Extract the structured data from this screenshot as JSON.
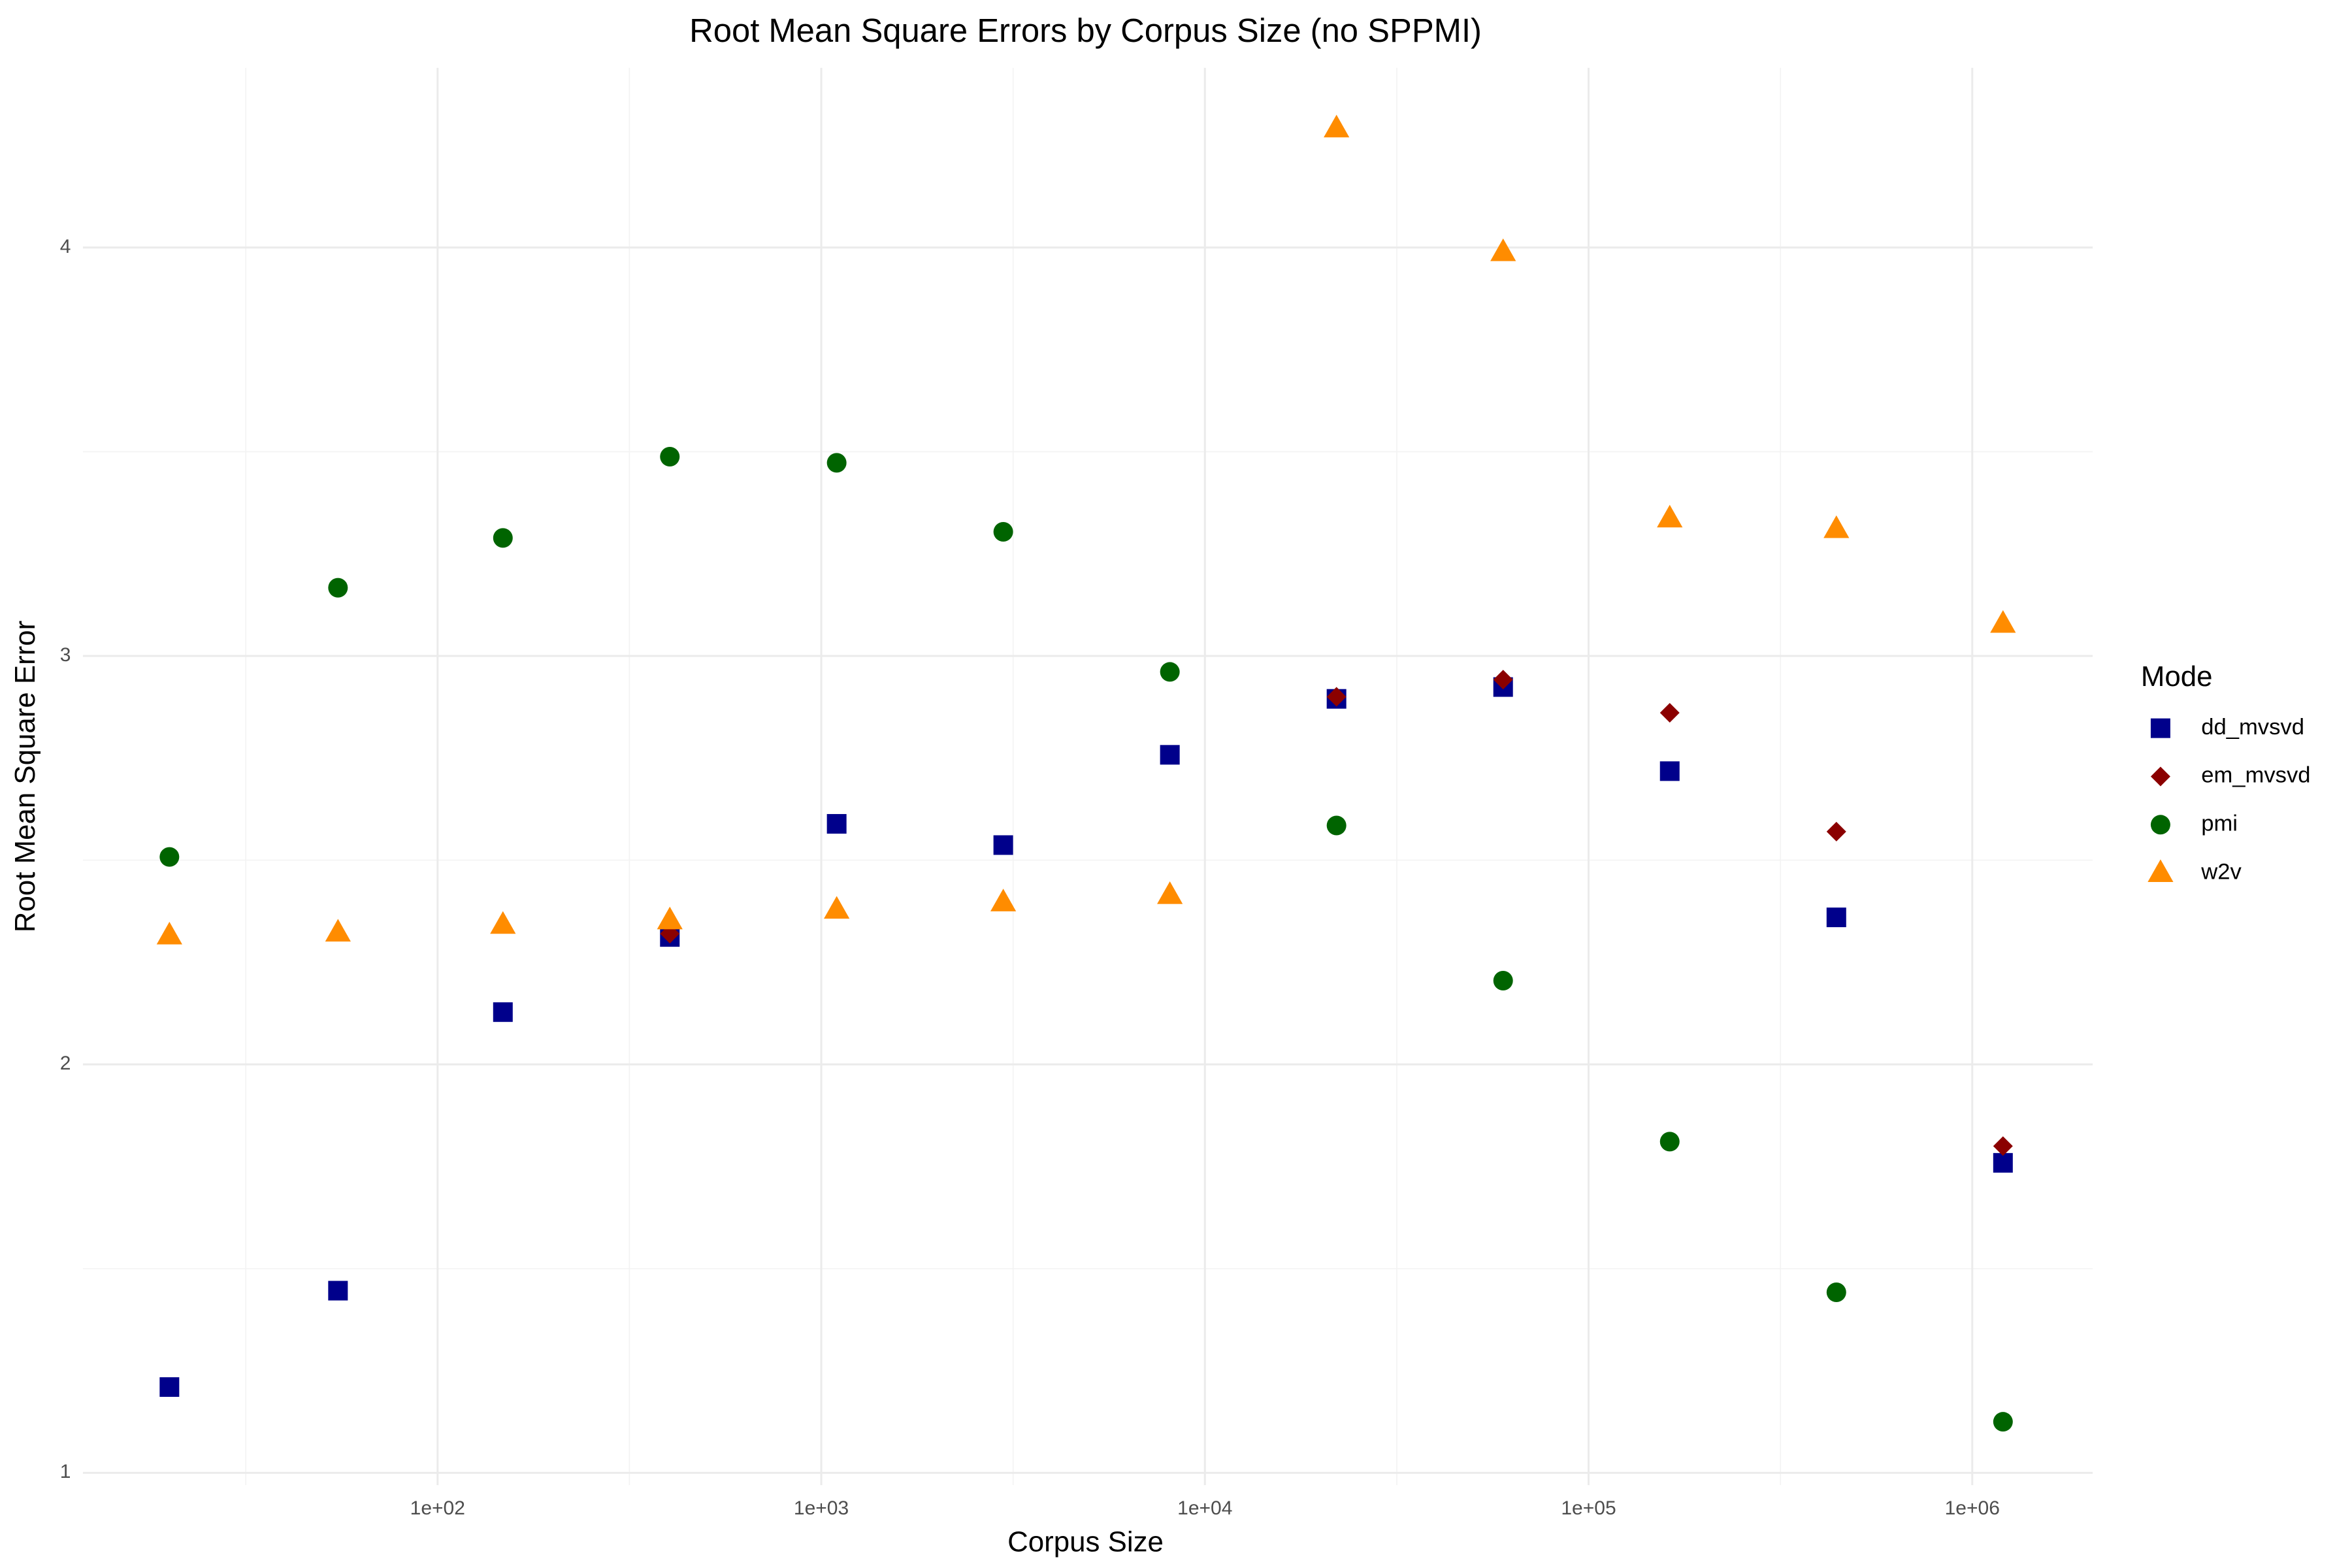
{
  "chart_data": {
    "type": "scatter",
    "title": "Root Mean Square Errors by Corpus Size (no SPPMI)",
    "x_label": "Corpus Size",
    "y_label": "Root Mean Square Error",
    "legend_title": "Mode",
    "legend_position": "right",
    "x_scale": "log",
    "grid": true,
    "x": [
      20,
      55,
      148,
      403,
      1097,
      2981,
      8103,
      22026,
      59874,
      162755,
      442413,
      1202604
    ],
    "xlim": [
      11.9,
      2060000
    ],
    "xticks": [
      {
        "value": 100,
        "label": "1e+02"
      },
      {
        "value": 1000,
        "label": "1e+03"
      },
      {
        "value": 10000,
        "label": "1e+04"
      },
      {
        "value": 100000,
        "label": "1e+05"
      },
      {
        "value": 1000000,
        "label": "1e+06"
      }
    ],
    "ylim": [
      0.97,
      4.44
    ],
    "yticks": [
      1,
      2,
      3,
      4
    ],
    "series": [
      {
        "name": "dd_mvsvd",
        "color": "#00008b",
        "shape": "square",
        "values": [
          1.21,
          1.446,
          2.128,
          2.312,
          2.589,
          2.537,
          2.758,
          2.895,
          2.924,
          2.718,
          2.36,
          1.759
        ]
      },
      {
        "name": "em_mvsvd",
        "color": "#8b0000",
        "shape": "diamond",
        "values": [
          null,
          null,
          null,
          2.32,
          null,
          null,
          null,
          2.9,
          2.942,
          2.861,
          2.57,
          1.8
        ]
      },
      {
        "name": "pmi",
        "color": "#006400",
        "shape": "circle",
        "values": [
          2.508,
          3.167,
          3.289,
          3.488,
          3.473,
          3.304,
          2.961,
          2.585,
          2.205,
          1.811,
          1.442,
          1.125
        ]
      },
      {
        "name": "w2v",
        "color": "#ff8c00",
        "shape": "triangle",
        "values": [
          2.316,
          2.323,
          2.342,
          2.353,
          2.379,
          2.397,
          2.415,
          4.292,
          3.989,
          3.337,
          3.311,
          3.079
        ]
      }
    ]
  }
}
